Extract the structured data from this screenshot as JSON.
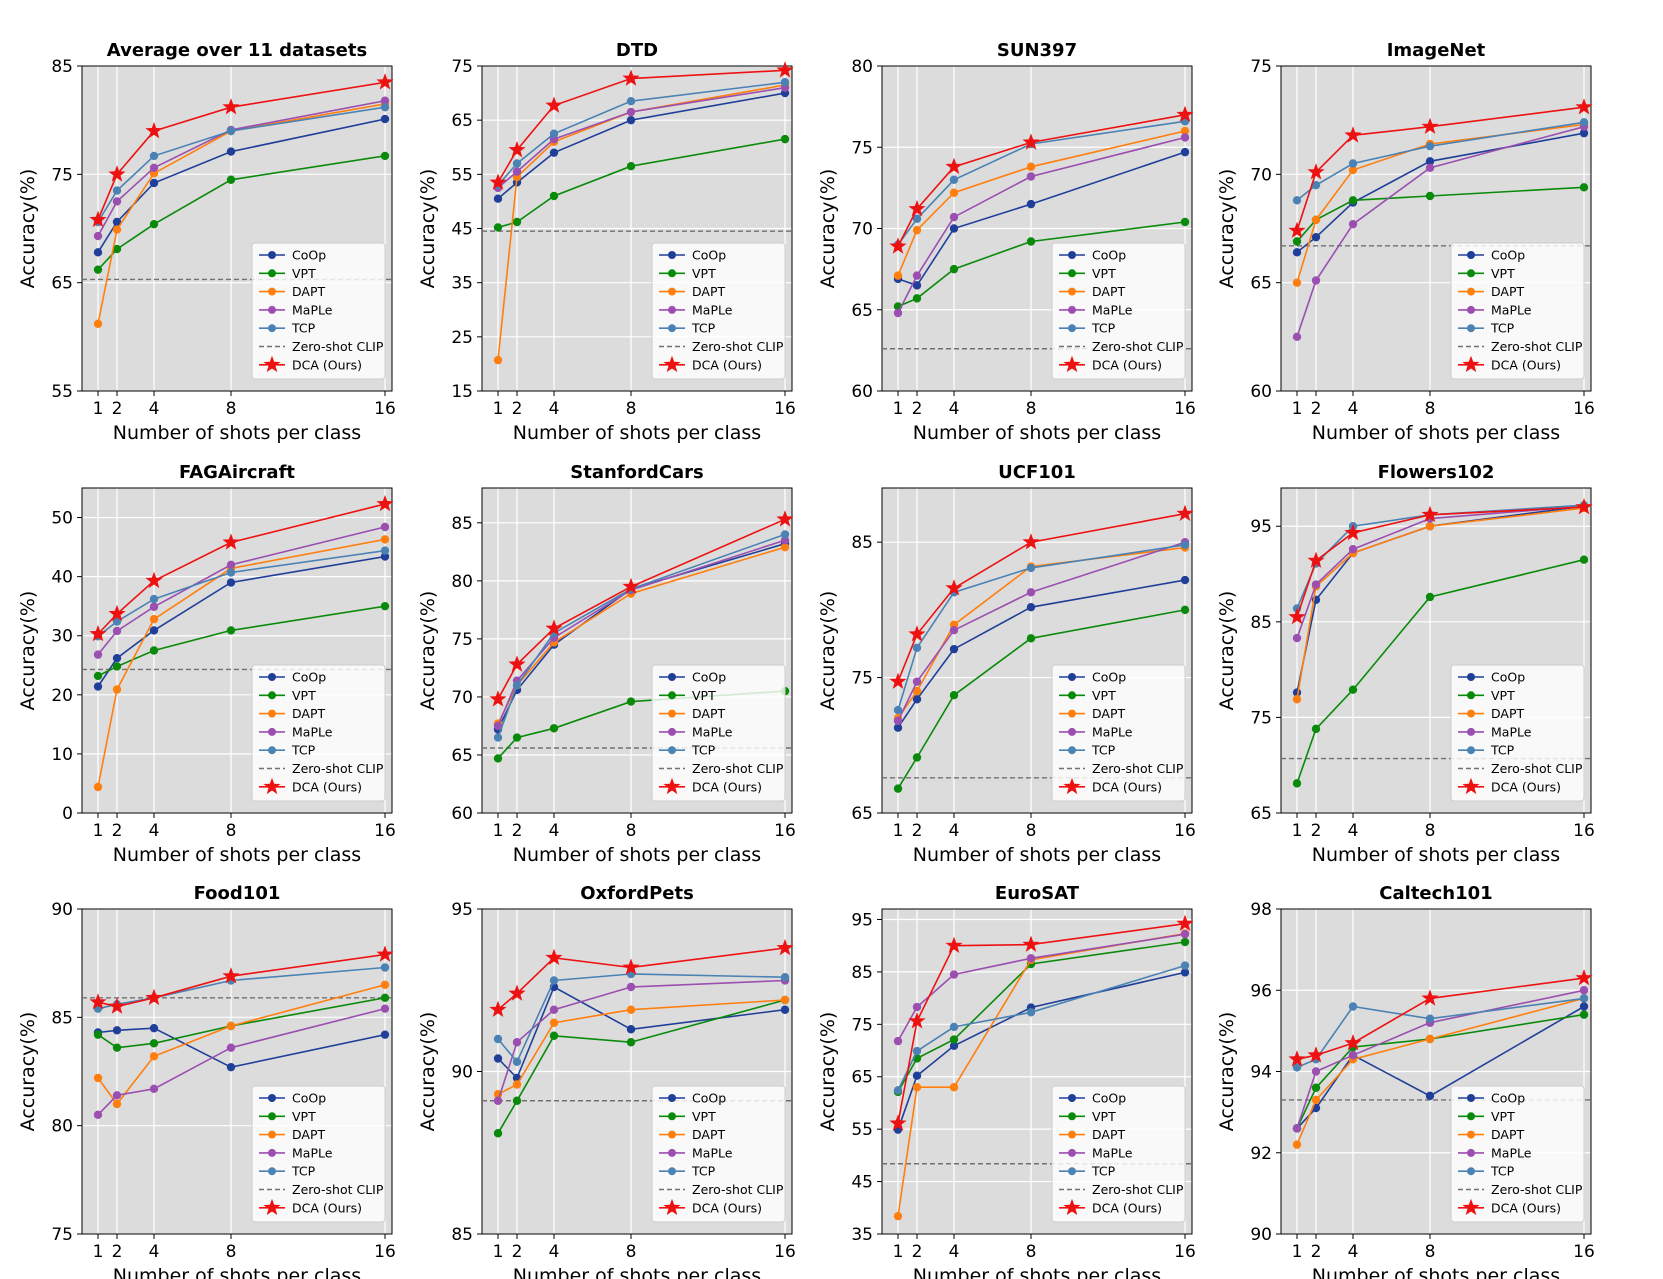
{
  "figure": {
    "xlabel": "Number of shots per class",
    "ylabel": "Accuracy(%)"
  },
  "legend": {
    "entries": [
      "CoOp",
      "VPT",
      "DAPT",
      "MaPLe",
      "TCP",
      "Zero-shot CLIP",
      "DCA (Ours)"
    ],
    "placement": "lower-right"
  },
  "colors": {
    "CoOp": "#1f3f99",
    "VPT": "#0a8a0a",
    "DAPT": "#ff7f0e",
    "MaPLe": "#9b4fb0",
    "TCP": "#4a82b4",
    "Zero-shot CLIP": "#707070",
    "DCA (Ours)": "#ee1111",
    "plot_bg": "#dcdcdc",
    "grid": "#ffffff"
  },
  "chart_data": [
    {
      "type": "line",
      "title": "Average over 11 datasets",
      "xlabel": "Number of shots per class",
      "ylabel": "Accuracy(%)",
      "x": [
        1,
        2,
        4,
        8,
        16
      ],
      "xticks": [
        "1",
        "2",
        "4",
        "8",
        "16"
      ],
      "ylim": [
        55,
        85
      ],
      "yticks": [
        "55",
        "65",
        "75",
        "85"
      ],
      "zero_shot": 65.3,
      "series": [
        {
          "name": "CoOp",
          "values": [
            67.8,
            70.6,
            74.2,
            77.1,
            80.1
          ]
        },
        {
          "name": "VPT",
          "values": [
            66.2,
            68.1,
            70.4,
            74.5,
            76.7
          ]
        },
        {
          "name": "DAPT",
          "values": [
            61.2,
            69.9,
            75.1,
            79.0,
            81.5
          ]
        },
        {
          "name": "MaPLe",
          "values": [
            69.3,
            72.5,
            75.6,
            79.1,
            81.8
          ]
        },
        {
          "name": "TCP",
          "values": [
            70.6,
            73.5,
            76.7,
            79.0,
            81.2
          ]
        },
        {
          "name": "DCA (Ours)",
          "values": [
            70.8,
            75.0,
            79.0,
            81.2,
            83.5
          ]
        }
      ]
    },
    {
      "type": "line",
      "title": "DTD",
      "xlabel": "Number of shots per class",
      "ylabel": "Accuracy(%)",
      "x": [
        1,
        2,
        4,
        8,
        16
      ],
      "xticks": [
        "1",
        "2",
        "4",
        "8",
        "16"
      ],
      "ylim": [
        15,
        75
      ],
      "yticks": [
        "15",
        "25",
        "35",
        "45",
        "55",
        "65",
        "75"
      ],
      "zero_shot": 44.5,
      "series": [
        {
          "name": "CoOp",
          "values": [
            50.5,
            53.5,
            59.0,
            65.0,
            70.0
          ]
        },
        {
          "name": "VPT",
          "values": [
            45.2,
            46.2,
            51.0,
            56.5,
            61.5
          ]
        },
        {
          "name": "DAPT",
          "values": [
            20.7,
            54.5,
            61.0,
            66.5,
            71.5
          ]
        },
        {
          "name": "MaPLe",
          "values": [
            52.5,
            55.5,
            61.5,
            66.5,
            71.0
          ]
        },
        {
          "name": "TCP",
          "values": [
            53.0,
            57.0,
            62.5,
            68.5,
            72.0
          ]
        },
        {
          "name": "DCA (Ours)",
          "values": [
            53.5,
            59.5,
            67.7,
            72.7,
            74.2
          ]
        }
      ]
    },
    {
      "type": "line",
      "title": "SUN397",
      "xlabel": "Number of shots per class",
      "ylabel": "Accuracy(%)",
      "x": [
        1,
        2,
        4,
        8,
        16
      ],
      "xticks": [
        "1",
        "2",
        "4",
        "8",
        "16"
      ],
      "ylim": [
        60,
        80
      ],
      "yticks": [
        "60",
        "65",
        "70",
        "75",
        "80"
      ],
      "zero_shot": 62.6,
      "series": [
        {
          "name": "CoOp",
          "values": [
            66.9,
            66.5,
            70.0,
            71.5,
            74.7
          ]
        },
        {
          "name": "VPT",
          "values": [
            65.2,
            65.7,
            67.5,
            69.2,
            70.4
          ]
        },
        {
          "name": "DAPT",
          "values": [
            67.1,
            69.9,
            72.2,
            73.8,
            76.0
          ]
        },
        {
          "name": "MaPLe",
          "values": [
            64.8,
            67.1,
            70.7,
            73.2,
            75.6
          ]
        },
        {
          "name": "TCP",
          "values": [
            69.0,
            70.6,
            73.0,
            75.2,
            76.6
          ]
        },
        {
          "name": "DCA (Ours)",
          "values": [
            68.9,
            71.2,
            73.8,
            75.3,
            77.0
          ]
        }
      ]
    },
    {
      "type": "line",
      "title": "ImageNet",
      "xlabel": "Number of shots per class",
      "ylabel": "Accuracy(%)",
      "x": [
        1,
        2,
        4,
        8,
        16
      ],
      "xticks": [
        "1",
        "2",
        "4",
        "8",
        "16"
      ],
      "ylim": [
        60,
        75
      ],
      "yticks": [
        "60",
        "65",
        "70",
        "75"
      ],
      "zero_shot": 66.7,
      "series": [
        {
          "name": "CoOp",
          "values": [
            66.4,
            67.1,
            68.7,
            70.6,
            71.9
          ]
        },
        {
          "name": "VPT",
          "values": [
            66.9,
            67.9,
            68.8,
            69.0,
            69.4
          ]
        },
        {
          "name": "DAPT",
          "values": [
            65.0,
            67.9,
            70.2,
            71.4,
            72.3
          ]
        },
        {
          "name": "MaPLe",
          "values": [
            62.5,
            65.1,
            67.7,
            70.3,
            72.2
          ]
        },
        {
          "name": "TCP",
          "values": [
            68.8,
            69.5,
            70.5,
            71.3,
            72.4
          ]
        },
        {
          "name": "DCA (Ours)",
          "values": [
            67.4,
            70.1,
            71.8,
            72.2,
            73.1
          ]
        }
      ]
    },
    {
      "type": "line",
      "title": "FAGAircraft",
      "xlabel": "Number of shots per class",
      "ylabel": "Accuracy(%)",
      "x": [
        1,
        2,
        4,
        8,
        16
      ],
      "xticks": [
        "1",
        "2",
        "4",
        "8",
        "16"
      ],
      "ylim": [
        0,
        55
      ],
      "yticks": [
        "0",
        "10",
        "20",
        "30",
        "40",
        "50"
      ],
      "zero_shot": 24.3,
      "series": [
        {
          "name": "CoOp",
          "values": [
            21.4,
            26.2,
            30.9,
            39.0,
            43.4
          ]
        },
        {
          "name": "VPT",
          "values": [
            23.2,
            24.8,
            27.5,
            30.9,
            35.0
          ]
        },
        {
          "name": "DAPT",
          "values": [
            4.4,
            20.9,
            32.8,
            41.4,
            46.3
          ]
        },
        {
          "name": "MaPLe",
          "values": [
            26.8,
            30.8,
            34.9,
            42.0,
            48.4
          ]
        },
        {
          "name": "TCP",
          "values": [
            29.9,
            32.4,
            36.2,
            40.7,
            44.4
          ]
        },
        {
          "name": "DCA (Ours)",
          "values": [
            30.3,
            33.7,
            39.3,
            45.8,
            52.3
          ]
        }
      ]
    },
    {
      "type": "line",
      "title": "StanfordCars",
      "xlabel": "Number of shots per class",
      "ylabel": "Accuracy(%)",
      "x": [
        1,
        2,
        4,
        8,
        16
      ],
      "xticks": [
        "1",
        "2",
        "4",
        "8",
        "16"
      ],
      "ylim": [
        60,
        88
      ],
      "yticks": [
        "60",
        "65",
        "70",
        "75",
        "80",
        "85"
      ],
      "zero_shot": 65.6,
      "series": [
        {
          "name": "CoOp",
          "values": [
            67.2,
            70.6,
            74.5,
            79.3,
            83.2
          ]
        },
        {
          "name": "VPT",
          "values": [
            64.7,
            66.5,
            67.3,
            69.6,
            70.5
          ]
        },
        {
          "name": "DAPT",
          "values": [
            67.7,
            71.0,
            74.7,
            78.9,
            82.9
          ]
        },
        {
          "name": "MaPLe",
          "values": [
            67.5,
            71.4,
            75.1,
            79.2,
            83.5
          ]
        },
        {
          "name": "TCP",
          "values": [
            66.5,
            71.0,
            75.5,
            79.3,
            84.0
          ]
        },
        {
          "name": "DCA (Ours)",
          "values": [
            69.8,
            72.8,
            75.9,
            79.5,
            85.3
          ]
        }
      ]
    },
    {
      "type": "line",
      "title": "UCF101",
      "xlabel": "Number of shots per class",
      "ylabel": "Accuracy(%)",
      "x": [
        1,
        2,
        4,
        8,
        16
      ],
      "xticks": [
        "1",
        "2",
        "4",
        "8",
        "16"
      ],
      "ylim": [
        65,
        89
      ],
      "yticks": [
        "65",
        "75",
        "85"
      ],
      "zero_shot": 67.6,
      "series": [
        {
          "name": "CoOp",
          "values": [
            71.3,
            73.4,
            77.1,
            80.2,
            82.2
          ]
        },
        {
          "name": "VPT",
          "values": [
            66.8,
            69.1,
            73.7,
            77.9,
            80.0
          ]
        },
        {
          "name": "DAPT",
          "values": [
            72.0,
            74.0,
            78.9,
            83.2,
            84.6
          ]
        },
        {
          "name": "MaPLe",
          "values": [
            71.8,
            74.7,
            78.5,
            81.3,
            85.0
          ]
        },
        {
          "name": "TCP",
          "values": [
            72.6,
            77.2,
            81.3,
            83.1,
            84.8
          ]
        },
        {
          "name": "DCA (Ours)",
          "values": [
            74.7,
            78.2,
            81.6,
            85.0,
            87.1
          ]
        }
      ]
    },
    {
      "type": "line",
      "title": "Flowers102",
      "xlabel": "Number of shots per class",
      "ylabel": "Accuracy(%)",
      "x": [
        1,
        2,
        4,
        8,
        16
      ],
      "xticks": [
        "1",
        "2",
        "4",
        "8",
        "16"
      ],
      "ylim": [
        65,
        99
      ],
      "yticks": [
        "65",
        "75",
        "85",
        "95"
      ],
      "zero_shot": 70.7,
      "series": [
        {
          "name": "CoOp",
          "values": [
            77.6,
            87.3,
            92.2,
            95.0,
            97.1
          ]
        },
        {
          "name": "VPT",
          "values": [
            68.1,
            73.8,
            77.9,
            87.6,
            91.5
          ]
        },
        {
          "name": "DAPT",
          "values": [
            76.9,
            88.7,
            92.2,
            95.0,
            96.9
          ]
        },
        {
          "name": "MaPLe",
          "values": [
            83.3,
            88.9,
            92.6,
            95.8,
            97.1
          ]
        },
        {
          "name": "TCP",
          "values": [
            86.4,
            91.1,
            95.0,
            96.2,
            97.2
          ]
        },
        {
          "name": "DCA (Ours)",
          "values": [
            85.5,
            91.4,
            94.3,
            96.2,
            97.0
          ]
        }
      ]
    },
    {
      "type": "line",
      "title": "Food101",
      "xlabel": "Number of shots per class",
      "ylabel": "Accuracy(%)",
      "x": [
        1,
        2,
        4,
        8,
        16
      ],
      "xticks": [
        "1",
        "2",
        "4",
        "8",
        "16"
      ],
      "ylim": [
        75,
        90
      ],
      "yticks": [
        "75",
        "80",
        "85",
        "90"
      ],
      "zero_shot": 85.9,
      "series": [
        {
          "name": "CoOp",
          "values": [
            84.3,
            84.4,
            84.5,
            82.7,
            84.2
          ]
        },
        {
          "name": "VPT",
          "values": [
            84.2,
            83.6,
            83.8,
            84.6,
            85.9
          ]
        },
        {
          "name": "DAPT",
          "values": [
            82.2,
            81.0,
            83.2,
            84.6,
            86.5
          ]
        },
        {
          "name": "MaPLe",
          "values": [
            80.5,
            81.4,
            81.7,
            83.6,
            85.4
          ]
        },
        {
          "name": "TCP",
          "values": [
            85.4,
            85.6,
            85.9,
            86.7,
            87.3
          ]
        },
        {
          "name": "DCA (Ours)",
          "values": [
            85.7,
            85.5,
            85.9,
            86.9,
            87.9
          ]
        }
      ]
    },
    {
      "type": "line",
      "title": "OxfordPets",
      "xlabel": "Number of shots per class",
      "ylabel": "Accuracy(%)",
      "x": [
        1,
        2,
        4,
        8,
        16
      ],
      "xticks": [
        "1",
        "2",
        "4",
        "8",
        "16"
      ],
      "ylim": [
        85,
        95
      ],
      "yticks": [
        "85",
        "90",
        "95"
      ],
      "zero_shot": 89.1,
      "series": [
        {
          "name": "CoOp",
          "values": [
            90.4,
            89.8,
            92.6,
            91.3,
            91.9
          ]
        },
        {
          "name": "VPT",
          "values": [
            88.1,
            89.1,
            91.1,
            90.9,
            92.2
          ]
        },
        {
          "name": "DAPT",
          "values": [
            89.3,
            89.6,
            91.5,
            91.9,
            92.2
          ]
        },
        {
          "name": "MaPLe",
          "values": [
            89.1,
            90.9,
            91.9,
            92.6,
            92.8
          ]
        },
        {
          "name": "TCP",
          "values": [
            91.0,
            90.3,
            92.8,
            93.0,
            92.9
          ]
        },
        {
          "name": "DCA (Ours)",
          "values": [
            91.9,
            92.4,
            93.5,
            93.2,
            93.8
          ]
        }
      ]
    },
    {
      "type": "line",
      "title": "EuroSAT",
      "xlabel": "Number of shots per class",
      "ylabel": "Accuracy(%)",
      "x": [
        1,
        2,
        4,
        8,
        16
      ],
      "xticks": [
        "1",
        "2",
        "4",
        "8",
        "16"
      ],
      "ylim": [
        35,
        97
      ],
      "yticks": [
        "35",
        "45",
        "55",
        "65",
        "75",
        "85",
        "95"
      ],
      "zero_shot": 48.4,
      "series": [
        {
          "name": "CoOp",
          "values": [
            54.9,
            65.2,
            70.9,
            78.2,
            84.9
          ]
        },
        {
          "name": "VPT",
          "values": [
            62.1,
            68.5,
            72.1,
            86.5,
            90.7
          ]
        },
        {
          "name": "DAPT",
          "values": [
            38.4,
            63.0,
            63.0,
            87.3,
            92.3
          ]
        },
        {
          "name": "MaPLe",
          "values": [
            71.8,
            78.3,
            84.5,
            87.6,
            92.2
          ]
        },
        {
          "name": "TCP",
          "values": [
            62.4,
            69.9,
            74.5,
            77.3,
            86.2
          ]
        },
        {
          "name": "DCA (Ours)",
          "values": [
            56.1,
            75.6,
            90.0,
            90.2,
            94.2
          ]
        }
      ]
    },
    {
      "type": "line",
      "title": "Caltech101",
      "xlabel": "Number of shots per class",
      "ylabel": "Accuracy(%)",
      "x": [
        1,
        2,
        4,
        8,
        16
      ],
      "xticks": [
        "1",
        "2",
        "4",
        "8",
        "16"
      ],
      "ylim": [
        90,
        98
      ],
      "yticks": [
        "90",
        "92",
        "94",
        "96",
        "98"
      ],
      "zero_shot": 93.3,
      "series": [
        {
          "name": "CoOp",
          "values": [
            92.6,
            93.1,
            94.4,
            93.4,
            95.6
          ]
        },
        {
          "name": "VPT",
          "values": [
            92.6,
            93.6,
            94.6,
            94.8,
            95.4
          ]
        },
        {
          "name": "DAPT",
          "values": [
            92.2,
            93.3,
            94.3,
            94.8,
            95.8
          ]
        },
        {
          "name": "MaPLe",
          "values": [
            92.6,
            94.0,
            94.4,
            95.2,
            96.0
          ]
        },
        {
          "name": "TCP",
          "values": [
            94.1,
            94.3,
            95.6,
            95.3,
            95.8
          ]
        },
        {
          "name": "DCA (Ours)",
          "values": [
            94.3,
            94.4,
            94.7,
            95.8,
            96.3
          ]
        }
      ]
    }
  ]
}
